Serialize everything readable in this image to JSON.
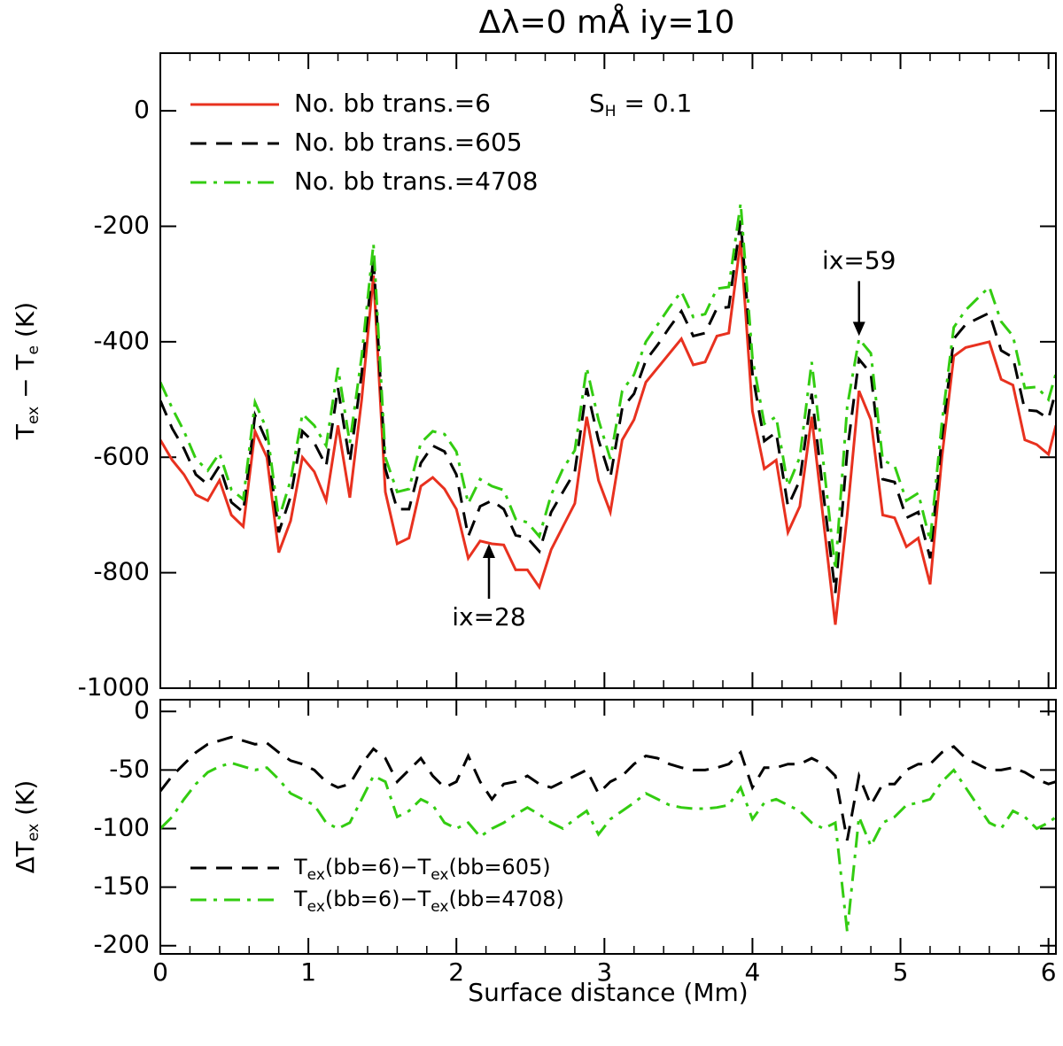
{
  "chart_data": [
    {
      "type": "line",
      "title": "Δλ=0  mÅ   iy=10",
      "ylabel": [
        "T",
        "ex",
        " − T",
        "e",
        " (K)"
      ],
      "note": [
        "S",
        "H",
        " = 0.1"
      ],
      "x": [
        0,
        0.08,
        0.16,
        0.24,
        0.32,
        0.4,
        0.48,
        0.56,
        0.64,
        0.72,
        0.8,
        0.88,
        0.96,
        1.04,
        1.12,
        1.2,
        1.28,
        1.36,
        1.44,
        1.52,
        1.6,
        1.68,
        1.76,
        1.84,
        1.92,
        2.0,
        2.08,
        2.16,
        2.24,
        2.32,
        2.4,
        2.48,
        2.56,
        2.64,
        2.72,
        2.8,
        2.88,
        2.96,
        3.04,
        3.12,
        3.2,
        3.28,
        3.36,
        3.44,
        3.52,
        3.6,
        3.68,
        3.76,
        3.84,
        3.92,
        4.0,
        4.08,
        4.16,
        4.24,
        4.32,
        4.4,
        4.48,
        4.56,
        4.64,
        4.72,
        4.8,
        4.88,
        4.96,
        5.04,
        5.12,
        5.2,
        5.28,
        5.36,
        5.44,
        5.52,
        5.6,
        5.68,
        5.76,
        5.84,
        5.92,
        6.0,
        6.05
      ],
      "series": [
        {
          "name": [
            "No. bb trans.=6"
          ],
          "color": "#e8311f",
          "style": "solid",
          "values": [
            -570,
            -605,
            -630,
            -665,
            -675,
            -640,
            -700,
            -720,
            -555,
            -600,
            -765,
            -710,
            -600,
            -625,
            -675,
            -545,
            -670,
            -500,
            -285,
            -660,
            -750,
            -740,
            -650,
            -635,
            -655,
            -690,
            -775,
            -745,
            -750,
            -752,
            -795,
            -795,
            -825,
            -760,
            -720,
            -680,
            -530,
            -640,
            -695,
            -570,
            -535,
            -470,
            -445,
            -420,
            -395,
            -440,
            -435,
            -390,
            -385,
            -225,
            -520,
            -620,
            -605,
            -730,
            -685,
            -530,
            -710,
            -890,
            -700,
            -485,
            -535,
            -700,
            -705,
            -755,
            -740,
            -820,
            -600,
            -425,
            -410,
            -405,
            -400,
            -465,
            -475,
            -570,
            -578,
            -595,
            -545
          ]
        },
        {
          "name": [
            "No. bb trans.=605"
          ],
          "color": "#000000",
          "style": "dashed",
          "values": [
            -502,
            -550,
            -585,
            -630,
            -647,
            -615,
            -678,
            -695,
            -527,
            -573,
            -730,
            -668,
            -555,
            -575,
            -615,
            -480,
            -608,
            -455,
            -253,
            -620,
            -690,
            -690,
            -610,
            -580,
            -590,
            -630,
            -737,
            -685,
            -675,
            -690,
            -735,
            -740,
            -763,
            -695,
            -660,
            -625,
            -480,
            -570,
            -635,
            -515,
            -490,
            -432,
            -405,
            -375,
            -347,
            -390,
            -385,
            -342,
            -340,
            -190,
            -455,
            -572,
            -557,
            -685,
            -640,
            -490,
            -665,
            -835,
            -590,
            -430,
            -455,
            -638,
            -643,
            -705,
            -695,
            -775,
            -565,
            -395,
            -370,
            -360,
            -350,
            -415,
            -427,
            -518,
            -520,
            -533,
            -485
          ]
        },
        {
          "name": [
            "No. bb trans.=4708"
          ],
          "color": "#33cc11",
          "style": "dashdot",
          "values": [
            -470,
            -515,
            -555,
            -603,
            -623,
            -593,
            -656,
            -673,
            -505,
            -552,
            -707,
            -640,
            -525,
            -545,
            -580,
            -445,
            -575,
            -425,
            -230,
            -600,
            -660,
            -655,
            -575,
            -555,
            -560,
            -590,
            -680,
            -638,
            -650,
            -657,
            -707,
            -713,
            -737,
            -665,
            -620,
            -588,
            -445,
            -535,
            -603,
            -485,
            -457,
            -400,
            -370,
            -340,
            -313,
            -357,
            -352,
            -308,
            -305,
            -160,
            -428,
            -542,
            -530,
            -650,
            -600,
            -435,
            -610,
            -795,
            -512,
            -395,
            -420,
            -605,
            -615,
            -675,
            -662,
            -745,
            -540,
            -375,
            -345,
            -325,
            -305,
            -365,
            -390,
            -480,
            -478,
            -500,
            -455
          ]
        }
      ],
      "annotations": [
        {
          "text": "ix=28",
          "x": 2.22,
          "y": -750,
          "side": "below"
        },
        {
          "text": "ix=59",
          "x": 4.72,
          "y": -390,
          "side": "above"
        }
      ],
      "xlim": [
        0,
        6.05
      ],
      "xticks": [
        0,
        1,
        2,
        3,
        4,
        5,
        6
      ],
      "xtick_labels": false,
      "minor_divisions": 5,
      "ylim": [
        -1000,
        100
      ],
      "yticks": [
        -1000,
        -800,
        -600,
        -400,
        -200,
        0
      ],
      "legend": "upper left"
    },
    {
      "type": "line",
      "xlabel": "Surface distance (Mm)",
      "ylabel": [
        "ΔT",
        "ex",
        " (K)"
      ],
      "x": [
        0,
        0.08,
        0.16,
        0.24,
        0.32,
        0.4,
        0.48,
        0.56,
        0.64,
        0.72,
        0.8,
        0.88,
        0.96,
        1.04,
        1.12,
        1.2,
        1.28,
        1.36,
        1.44,
        1.52,
        1.6,
        1.68,
        1.76,
        1.84,
        1.92,
        2.0,
        2.08,
        2.16,
        2.24,
        2.32,
        2.4,
        2.48,
        2.56,
        2.64,
        2.72,
        2.8,
        2.88,
        2.96,
        3.04,
        3.12,
        3.2,
        3.28,
        3.36,
        3.44,
        3.52,
        3.6,
        3.68,
        3.76,
        3.84,
        3.92,
        4.0,
        4.08,
        4.16,
        4.24,
        4.32,
        4.4,
        4.48,
        4.56,
        4.64,
        4.72,
        4.8,
        4.88,
        4.96,
        5.04,
        5.12,
        5.2,
        5.28,
        5.36,
        5.44,
        5.52,
        5.6,
        5.68,
        5.76,
        5.84,
        5.92,
        6.0,
        6.05
      ],
      "series": [
        {
          "name": [
            "T",
            "ex",
            "(bb=6)−T",
            "ex",
            "(bb=605)"
          ],
          "color": "#000000",
          "style": "dashed",
          "values": [
            -68,
            -55,
            -45,
            -35,
            -28,
            -25,
            -22,
            -25,
            -28,
            -27,
            -35,
            -42,
            -45,
            -50,
            -60,
            -65,
            -62,
            -45,
            -32,
            -40,
            -60,
            -50,
            -40,
            -55,
            -65,
            -60,
            -38,
            -60,
            -75,
            -62,
            -60,
            -55,
            -62,
            -65,
            -60,
            -55,
            -50,
            -70,
            -60,
            -55,
            -45,
            -38,
            -40,
            -45,
            -48,
            -50,
            -50,
            -48,
            -45,
            -35,
            -65,
            -48,
            -48,
            -45,
            -45,
            -40,
            -45,
            -55,
            -110,
            -55,
            -80,
            -62,
            -62,
            -50,
            -45,
            -45,
            -35,
            -30,
            -40,
            -45,
            -50,
            -50,
            -48,
            -52,
            -58,
            -62,
            -60
          ]
        },
        {
          "name": [
            "T",
            "ex",
            "(bb=6)−T",
            "ex",
            "(bb=4708)"
          ],
          "color": "#33cc11",
          "style": "dashdot",
          "values": [
            -100,
            -90,
            -75,
            -62,
            -52,
            -47,
            -44,
            -47,
            -50,
            -48,
            -58,
            -70,
            -75,
            -80,
            -95,
            -100,
            -95,
            -75,
            -55,
            -60,
            -90,
            -85,
            -75,
            -80,
            -95,
            -100,
            -95,
            -107,
            -100,
            -95,
            -88,
            -82,
            -88,
            -95,
            -100,
            -92,
            -85,
            -105,
            -92,
            -85,
            -78,
            -70,
            -75,
            -80,
            -82,
            -83,
            -83,
            -82,
            -80,
            -65,
            -92,
            -78,
            -75,
            -80,
            -85,
            -95,
            -100,
            -95,
            -188,
            -90,
            -115,
            -95,
            -90,
            -80,
            -78,
            -75,
            -60,
            -50,
            -65,
            -80,
            -95,
            -100,
            -85,
            -90,
            -100,
            -95,
            -90
          ]
        }
      ],
      "xlim": [
        0,
        6.05
      ],
      "xticks": [
        0,
        1,
        2,
        3,
        4,
        5,
        6
      ],
      "xtick_labels": true,
      "minor_divisions": 5,
      "ylim": [
        -207,
        10
      ],
      "yticks": [
        -200,
        -150,
        -100,
        -50,
        0
      ],
      "legend": "lower left"
    }
  ]
}
